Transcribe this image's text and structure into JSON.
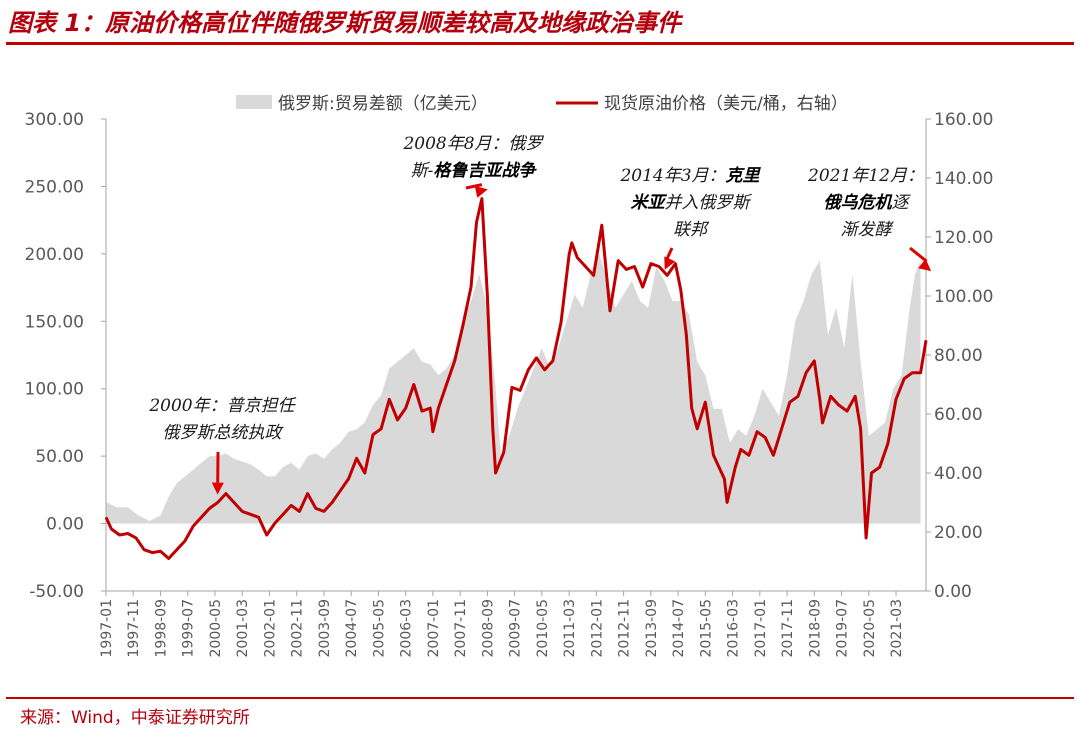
{
  "header": {
    "title": "图表 1：原油价格高位伴随俄罗斯贸易顺差较高及地缘政治事件"
  },
  "footer": {
    "source": "来源：Wind，中泰证券研究所"
  },
  "colors": {
    "accent": "#c00000",
    "area": "#d9d9d9",
    "line": "#c00000"
  },
  "chart_data": {
    "type": "line",
    "legend_position": "top",
    "grid": false,
    "y_left": {
      "range": [
        -50,
        300
      ],
      "ticks": [
        "-50.00",
        "0.00",
        "50.00",
        "100.00",
        "150.00",
        "200.00",
        "250.00",
        "300.00"
      ]
    },
    "y_right": {
      "range": [
        0,
        160
      ],
      "ticks": [
        "0.00",
        "20.00",
        "40.00",
        "60.00",
        "80.00",
        "100.00",
        "120.00",
        "140.00",
        "160.00"
      ]
    },
    "x_ticks": [
      "1997-01",
      "1997-11",
      "1998-09",
      "1999-07",
      "2000-05",
      "2001-03",
      "2002-01",
      "2002-11",
      "2003-09",
      "2004-07",
      "2005-05",
      "2006-03",
      "2007-01",
      "2007-11",
      "2008-09",
      "2009-07",
      "2010-05",
      "2011-03",
      "2012-01",
      "2012-11",
      "2013-09",
      "2014-07",
      "2015-05",
      "2016-03",
      "2017-01",
      "2017-11",
      "2018-09",
      "2019-07",
      "2020-05",
      "2021-03"
    ],
    "series": [
      {
        "name": "俄罗斯:贸易差额（亿美元）",
        "type": "area",
        "axis": "left",
        "color": "#d9d9d9",
        "points": [
          [
            "1997-01",
            16
          ],
          [
            "1997-05",
            12
          ],
          [
            "1997-09",
            12
          ],
          [
            "1998-01",
            6
          ],
          [
            "1998-05",
            2
          ],
          [
            "1998-09",
            6
          ],
          [
            "1998-12",
            20
          ],
          [
            "1999-03",
            30
          ],
          [
            "1999-06",
            35
          ],
          [
            "1999-09",
            40
          ],
          [
            "1999-12",
            45
          ],
          [
            "2000-03",
            50
          ],
          [
            "2000-06",
            50
          ],
          [
            "2000-09",
            52
          ],
          [
            "2000-12",
            48
          ],
          [
            "2001-03",
            46
          ],
          [
            "2001-06",
            44
          ],
          [
            "2001-09",
            40
          ],
          [
            "2001-12",
            35
          ],
          [
            "2002-03",
            35
          ],
          [
            "2002-06",
            42
          ],
          [
            "2002-09",
            45
          ],
          [
            "2002-12",
            40
          ],
          [
            "2003-03",
            50
          ],
          [
            "2003-06",
            52
          ],
          [
            "2003-09",
            48
          ],
          [
            "2003-12",
            55
          ],
          [
            "2004-03",
            60
          ],
          [
            "2004-06",
            68
          ],
          [
            "2004-09",
            70
          ],
          [
            "2004-12",
            75
          ],
          [
            "2005-03",
            88
          ],
          [
            "2005-06",
            95
          ],
          [
            "2005-09",
            115
          ],
          [
            "2005-12",
            120
          ],
          [
            "2006-03",
            125
          ],
          [
            "2006-06",
            130
          ],
          [
            "2006-09",
            120
          ],
          [
            "2006-12",
            118
          ],
          [
            "2007-03",
            110
          ],
          [
            "2007-06",
            115
          ],
          [
            "2007-09",
            125
          ],
          [
            "2007-12",
            150
          ],
          [
            "2008-03",
            165
          ],
          [
            "2008-06",
            185
          ],
          [
            "2008-09",
            160
          ],
          [
            "2008-12",
            100
          ],
          [
            "2009-02",
            50
          ],
          [
            "2009-05",
            65
          ],
          [
            "2009-08",
            85
          ],
          [
            "2009-11",
            100
          ],
          [
            "2010-02",
            115
          ],
          [
            "2010-05",
            130
          ],
          [
            "2010-08",
            115
          ],
          [
            "2010-11",
            130
          ],
          [
            "2011-02",
            150
          ],
          [
            "2011-05",
            170
          ],
          [
            "2011-08",
            160
          ],
          [
            "2011-11",
            185
          ],
          [
            "2012-02",
            200
          ],
          [
            "2012-05",
            180
          ],
          [
            "2012-08",
            160
          ],
          [
            "2012-11",
            170
          ],
          [
            "2013-02",
            180
          ],
          [
            "2013-05",
            165
          ],
          [
            "2013-08",
            160
          ],
          [
            "2013-11",
            190
          ],
          [
            "2014-02",
            180
          ],
          [
            "2014-05",
            165
          ],
          [
            "2014-08",
            165
          ],
          [
            "2014-11",
            155
          ],
          [
            "2015-02",
            120
          ],
          [
            "2015-05",
            110
          ],
          [
            "2015-08",
            85
          ],
          [
            "2015-11",
            85
          ],
          [
            "2016-02",
            60
          ],
          [
            "2016-05",
            70
          ],
          [
            "2016-08",
            65
          ],
          [
            "2016-11",
            80
          ],
          [
            "2017-02",
            100
          ],
          [
            "2017-05",
            90
          ],
          [
            "2017-08",
            80
          ],
          [
            "2017-11",
            110
          ],
          [
            "2018-02",
            150
          ],
          [
            "2018-05",
            165
          ],
          [
            "2018-08",
            185
          ],
          [
            "2018-11",
            195
          ],
          [
            "2019-02",
            140
          ],
          [
            "2019-05",
            160
          ],
          [
            "2019-08",
            130
          ],
          [
            "2019-11",
            185
          ],
          [
            "2020-02",
            120
          ],
          [
            "2020-05",
            65
          ],
          [
            "2020-08",
            70
          ],
          [
            "2020-11",
            75
          ],
          [
            "2021-02",
            100
          ],
          [
            "2021-05",
            110
          ],
          [
            "2021-08",
            160
          ],
          [
            "2021-10",
            185
          ],
          [
            "2021-12",
            195
          ]
        ]
      },
      {
        "name": "现货原油价格（美元/桶，右轴）",
        "type": "line",
        "axis": "right",
        "color": "#c00000",
        "points": [
          [
            "1997-01",
            25
          ],
          [
            "1997-03",
            21
          ],
          [
            "1997-06",
            19
          ],
          [
            "1997-09",
            19.5
          ],
          [
            "1997-12",
            18
          ],
          [
            "1998-03",
            14
          ],
          [
            "1998-06",
            13
          ],
          [
            "1998-09",
            13.5
          ],
          [
            "1998-12",
            11
          ],
          [
            "1999-03",
            14
          ],
          [
            "1999-06",
            17
          ],
          [
            "1999-09",
            22
          ],
          [
            "1999-12",
            25
          ],
          [
            "2000-03",
            28
          ],
          [
            "2000-06",
            30
          ],
          [
            "2000-09",
            33
          ],
          [
            "2000-12",
            30
          ],
          [
            "2001-03",
            27
          ],
          [
            "2001-06",
            26
          ],
          [
            "2001-09",
            25
          ],
          [
            "2001-12",
            19
          ],
          [
            "2002-03",
            23
          ],
          [
            "2002-06",
            26
          ],
          [
            "2002-09",
            29
          ],
          [
            "2002-12",
            27
          ],
          [
            "2003-03",
            33
          ],
          [
            "2003-06",
            28
          ],
          [
            "2003-09",
            27
          ],
          [
            "2003-12",
            30
          ],
          [
            "2004-03",
            34
          ],
          [
            "2004-06",
            38
          ],
          [
            "2004-09",
            45
          ],
          [
            "2004-12",
            40
          ],
          [
            "2005-03",
            53
          ],
          [
            "2005-06",
            55
          ],
          [
            "2005-09",
            65
          ],
          [
            "2005-12",
            58
          ],
          [
            "2006-03",
            62
          ],
          [
            "2006-06",
            70
          ],
          [
            "2006-09",
            61
          ],
          [
            "2006-12",
            62
          ],
          [
            "2007-01",
            54
          ],
          [
            "2007-03",
            62
          ],
          [
            "2007-06",
            70
          ],
          [
            "2007-09",
            78
          ],
          [
            "2007-12",
            90
          ],
          [
            "2008-03",
            103
          ],
          [
            "2008-05",
            125
          ],
          [
            "2008-07",
            133
          ],
          [
            "2008-09",
            100
          ],
          [
            "2008-11",
            55
          ],
          [
            "2008-12",
            40
          ],
          [
            "2009-03",
            47
          ],
          [
            "2009-06",
            69
          ],
          [
            "2009-09",
            68
          ],
          [
            "2009-12",
            75
          ],
          [
            "2010-03",
            79
          ],
          [
            "2010-06",
            75
          ],
          [
            "2010-09",
            78
          ],
          [
            "2010-12",
            91
          ],
          [
            "2011-03",
            114
          ],
          [
            "2011-04",
            118
          ],
          [
            "2011-06",
            113
          ],
          [
            "2011-09",
            110
          ],
          [
            "2011-12",
            107
          ],
          [
            "2012-03",
            124
          ],
          [
            "2012-06",
            95
          ],
          [
            "2012-09",
            112
          ],
          [
            "2012-12",
            109
          ],
          [
            "2013-03",
            110
          ],
          [
            "2013-06",
            103
          ],
          [
            "2013-09",
            111
          ],
          [
            "2013-12",
            110
          ],
          [
            "2014-03",
            107
          ],
          [
            "2014-06",
            111
          ],
          [
            "2014-08",
            102
          ],
          [
            "2014-10",
            87
          ],
          [
            "2014-12",
            62
          ],
          [
            "2015-02",
            55
          ],
          [
            "2015-05",
            64
          ],
          [
            "2015-08",
            46
          ],
          [
            "2015-12",
            38
          ],
          [
            "2016-01",
            30
          ],
          [
            "2016-04",
            42
          ],
          [
            "2016-06",
            48
          ],
          [
            "2016-09",
            46
          ],
          [
            "2016-12",
            54
          ],
          [
            "2017-03",
            52
          ],
          [
            "2017-06",
            46
          ],
          [
            "2017-09",
            55
          ],
          [
            "2017-12",
            64
          ],
          [
            "2018-03",
            66
          ],
          [
            "2018-06",
            74
          ],
          [
            "2018-09",
            78
          ],
          [
            "2018-11",
            65
          ],
          [
            "2018-12",
            57
          ],
          [
            "2019-03",
            66
          ],
          [
            "2019-06",
            63
          ],
          [
            "2019-09",
            61
          ],
          [
            "2019-12",
            66
          ],
          [
            "2020-02",
            55
          ],
          [
            "2020-04",
            18
          ],
          [
            "2020-06",
            40
          ],
          [
            "2020-09",
            42
          ],
          [
            "2020-12",
            50
          ],
          [
            "2021-03",
            65
          ],
          [
            "2021-06",
            72
          ],
          [
            "2021-09",
            74
          ],
          [
            "2021-12",
            74
          ],
          [
            "2022-02",
            85
          ]
        ]
      }
    ],
    "annotations": [
      {
        "at": "2000-06",
        "arrow_to": 32,
        "lines": [
          [
            {
              "text": "2000年：普京担任",
              "bold": false
            }
          ],
          [
            {
              "text": "俄罗斯总统执政",
              "bold": false
            }
          ]
        ]
      },
      {
        "at": "2008-07",
        "arrow_to": 133,
        "lines": [
          [
            {
              "text": "2008年8月：俄罗",
              "bold": false
            }
          ],
          [
            {
              "text": "斯-",
              "bold": false
            },
            {
              "text": "格鲁吉亚战争",
              "bold": true
            }
          ]
        ]
      },
      {
        "at": "2014-03",
        "arrow_to": 108,
        "lines": [
          [
            {
              "text": "2014年3月：",
              "bold": false
            },
            {
              "text": "克里",
              "bold": true
            }
          ],
          [
            {
              "text": "米亚",
              "bold": true
            },
            {
              "text": "并入俄罗斯",
              "bold": false
            }
          ],
          [
            {
              "text": "联邦",
              "bold": false
            }
          ]
        ]
      },
      {
        "at": "2021-12",
        "arrow_to": 107,
        "lines": [
          [
            {
              "text": "2021年12月：",
              "bold": false
            }
          ],
          [
            {
              "text": "俄乌危机",
              "bold": true
            },
            {
              "text": "逐",
              "bold": false
            }
          ],
          [
            {
              "text": "渐发酵",
              "bold": false
            }
          ]
        ]
      }
    ]
  }
}
